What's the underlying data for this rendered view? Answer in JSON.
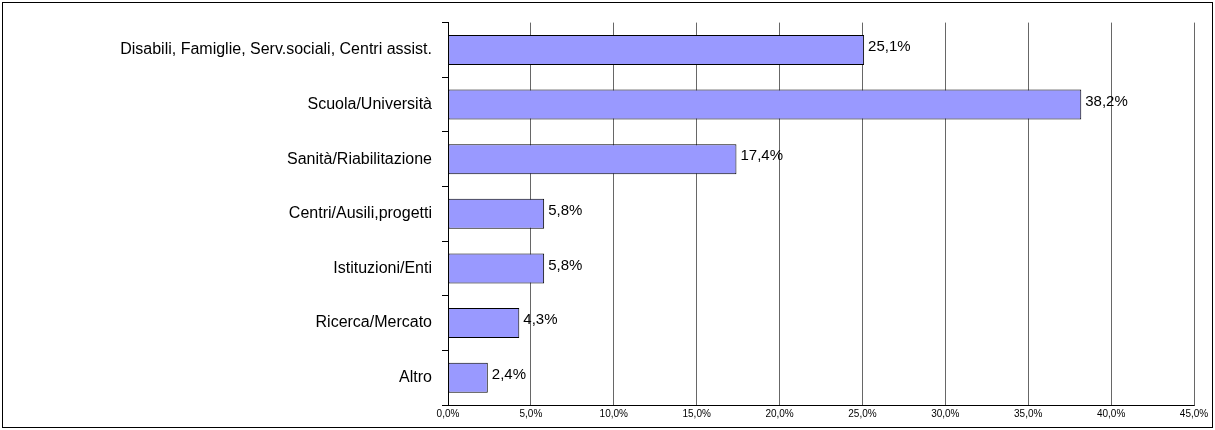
{
  "chart_data": {
    "type": "bar",
    "orientation": "horizontal",
    "categories": [
      "Disabili, Famiglie, Serv.sociali, Centri assist.",
      "Scuola/Università",
      "Sanità/Riabilitazione",
      "Centri/Ausili,progetti",
      "Istituzioni/Enti",
      "Ricerca/Mercato",
      "Altro"
    ],
    "values": [
      25.1,
      38.2,
      17.4,
      5.8,
      5.8,
      4.3,
      2.4
    ],
    "value_labels": [
      "25,1%",
      "38,2%",
      "17,4%",
      "5,8%",
      "5,8%",
      "4,3%",
      "2,4%"
    ],
    "color": "#9999ff",
    "xlim": [
      0,
      45
    ],
    "xticks": [
      {
        "value": 0,
        "label": "0,0%"
      },
      {
        "value": 5,
        "label": "5,0%"
      },
      {
        "value": 10,
        "label": "10,0%"
      },
      {
        "value": 15,
        "label": "15,0%"
      },
      {
        "value": 20,
        "label": "20,0%"
      },
      {
        "value": 25,
        "label": "25,0%"
      },
      {
        "value": 30,
        "label": "30,0%"
      },
      {
        "value": 35,
        "label": "35,0%"
      },
      {
        "value": 40,
        "label": "40,0%"
      },
      {
        "value": 45,
        "label": "45,0%"
      }
    ],
    "grid": "x",
    "legend": false
  }
}
